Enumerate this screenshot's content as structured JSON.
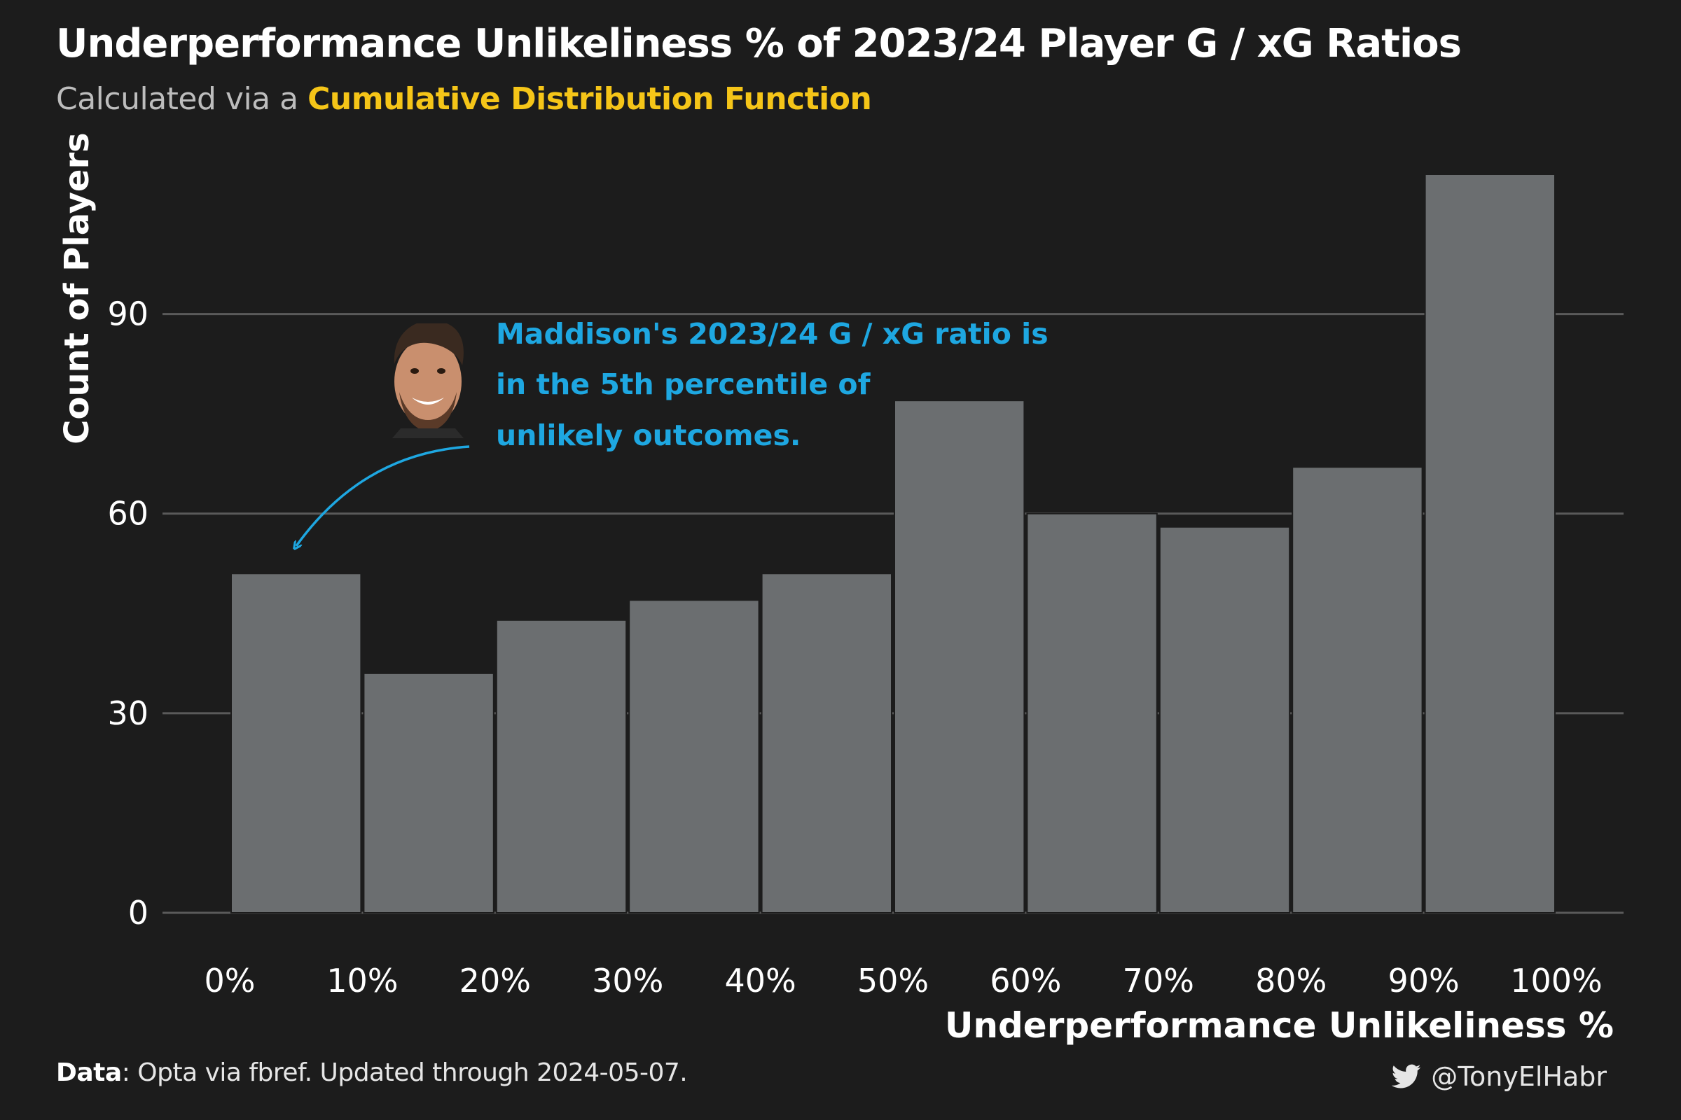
{
  "title": "Underperformance Unlikeliness % of 2023/24 Player G / xG Ratios",
  "subtitle": {
    "prefix": "Calculated via a ",
    "highlight": "Cumulative Distribution Function",
    "highlight_color": "#f5c518"
  },
  "footer": {
    "data_label": "Data",
    "data_text": ": Opta via fbref. Updated through 2024-05-07.",
    "handle": "@TonyElHabr",
    "handle_icon": "twitter-bird-icon"
  },
  "annotation": {
    "lines": [
      "Maddison's 2023/24 G / xG ratio is",
      "in the 5th percentile of",
      "unlikely outcomes."
    ],
    "color": "#1ea7e1",
    "image": "player-headshot"
  },
  "chart_data": {
    "type": "bar",
    "bins": [
      [
        0,
        10
      ],
      [
        10,
        20
      ],
      [
        20,
        30
      ],
      [
        30,
        40
      ],
      [
        40,
        50
      ],
      [
        50,
        60
      ],
      [
        60,
        70
      ],
      [
        70,
        80
      ],
      [
        80,
        90
      ],
      [
        90,
        100
      ]
    ],
    "values": [
      51,
      36,
      44,
      47,
      51,
      77,
      60,
      58,
      67,
      111
    ],
    "x_ticks": [
      "0%",
      "10%",
      "20%",
      "30%",
      "40%",
      "50%",
      "60%",
      "70%",
      "80%",
      "90%",
      "100%"
    ],
    "y_ticks": [
      "0",
      "30",
      "60",
      "90"
    ],
    "y_tick_values": [
      0,
      30,
      60,
      90
    ],
    "xlabel": "Underperformance Unlikeliness %",
    "ylabel": "Count of Players",
    "ylim": [
      0,
      111
    ],
    "bar_color": "#6b6e70",
    "grid": "horizontal"
  }
}
